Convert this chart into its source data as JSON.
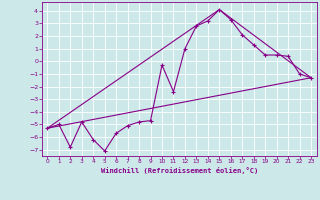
{
  "xlabel": "Windchill (Refroidissement éolien,°C)",
  "background_color": "#cce8e8",
  "line_color": "#880088",
  "grid_color": "#ffffff",
  "xlim": [
    -0.5,
    23.5
  ],
  "ylim": [
    -7.5,
    4.7
  ],
  "yticks": [
    4,
    3,
    2,
    1,
    0,
    -1,
    -2,
    -3,
    -4,
    -5,
    -6,
    -7
  ],
  "xticks": [
    0,
    1,
    2,
    3,
    4,
    5,
    6,
    7,
    8,
    9,
    10,
    11,
    12,
    13,
    14,
    15,
    16,
    17,
    18,
    19,
    20,
    21,
    22,
    23
  ],
  "series1_x": [
    0,
    1,
    2,
    3,
    4,
    5,
    6,
    7,
    8,
    9,
    10,
    11,
    12,
    13,
    14,
    15,
    16,
    17,
    18,
    19,
    20,
    21,
    22,
    23
  ],
  "series1_y": [
    -5.3,
    -5.0,
    -6.8,
    -4.8,
    -6.2,
    -7.1,
    -5.7,
    -5.1,
    -4.8,
    -4.7,
    -0.3,
    -2.4,
    1.0,
    2.8,
    3.2,
    4.1,
    3.3,
    2.1,
    1.3,
    0.5,
    0.5,
    0.4,
    -1.0,
    -1.3
  ],
  "series2_x": [
    0,
    23
  ],
  "series2_y": [
    -5.3,
    -1.3
  ],
  "series3_x": [
    0,
    15,
    23
  ],
  "series3_y": [
    -5.3,
    4.1,
    -1.3
  ]
}
